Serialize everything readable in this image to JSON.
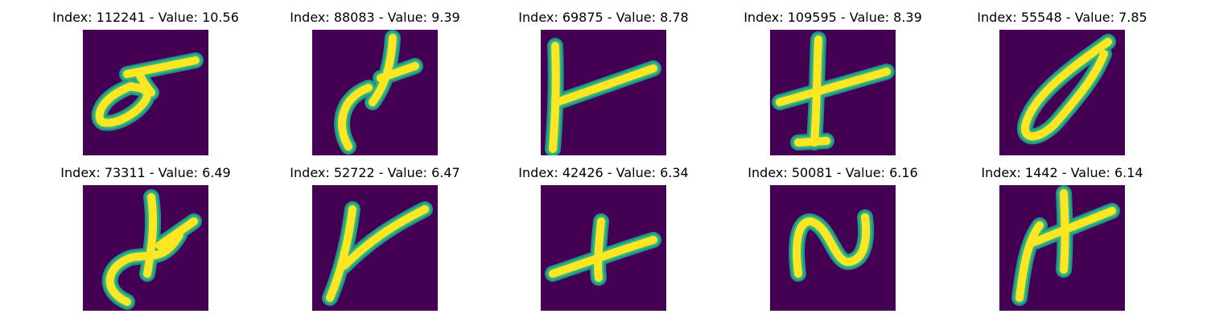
{
  "colors": {
    "background": "#440154",
    "stroke_core": "#fde725",
    "stroke_mid": "#35b779",
    "stroke_edge": "#21918c"
  },
  "panels": [
    {
      "title": "Index: 112241 - Value: 10.56",
      "index": "112241",
      "value": 10.56,
      "glyph": "loop-with-crossbar"
    },
    {
      "title": "Index: 88083 - Value: 9.39",
      "index": "88083",
      "value": 9.39,
      "glyph": "curved-hook-with-cross"
    },
    {
      "title": "Index: 69875 - Value: 8.78",
      "index": "69875",
      "value": 8.78,
      "glyph": "vertical-with-diagonal"
    },
    {
      "title": "Index: 109595 - Value: 8.39",
      "index": "109595",
      "value": 8.39,
      "glyph": "plus-like-cross"
    },
    {
      "title": "Index: 55548 - Value: 7.85",
      "index": "55548",
      "value": 7.85,
      "glyph": "slanted-loop"
    },
    {
      "title": "Index: 73311 - Value: 6.49",
      "index": "73311",
      "value": 6.49,
      "glyph": "hooked-cross"
    },
    {
      "title": "Index: 52722 - Value: 6.47",
      "index": "52722",
      "value": 6.47,
      "glyph": "y-shape"
    },
    {
      "title": "Index: 42426 - Value: 6.34",
      "index": "42426",
      "value": 6.34,
      "glyph": "horizontal-cross"
    },
    {
      "title": "Index: 50081 - Value: 6.16",
      "index": "50081",
      "value": 6.16,
      "glyph": "wave-n-shape"
    },
    {
      "title": "Index: 1442 - Value: 6.14",
      "index": "1442",
      "value": 6.14,
      "glyph": "pi-like-cross"
    }
  ]
}
